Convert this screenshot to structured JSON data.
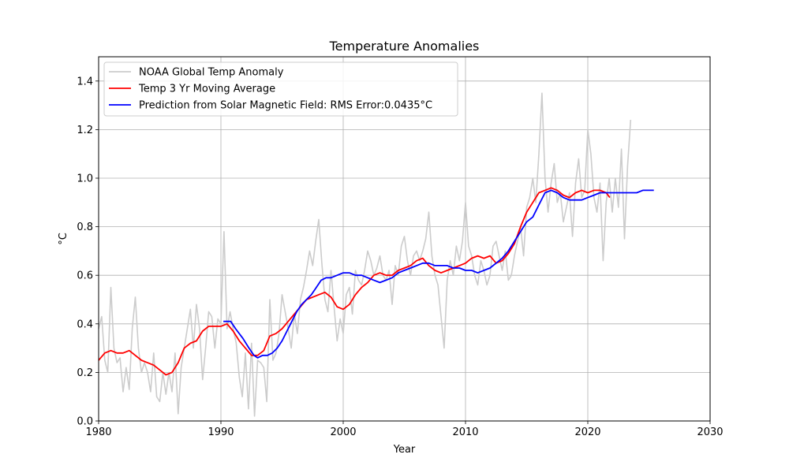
{
  "chart_data": {
    "type": "line",
    "title": "Temperature Anomalies",
    "xlabel": "Year",
    "ylabel": "°C",
    "xlim": [
      1980,
      2030
    ],
    "ylim": [
      0.0,
      1.5
    ],
    "xticks": [
      1980,
      1990,
      2000,
      2010,
      2020,
      2030
    ],
    "yticks": [
      0.0,
      0.2,
      0.4,
      0.6,
      0.8,
      1.0,
      1.2,
      1.4
    ],
    "ytick_labels": [
      "0.0",
      "0.2",
      "0.4",
      "0.6",
      "0.8",
      "1.0",
      "1.2",
      "1.4"
    ],
    "grid": true,
    "legend_position": "top-left",
    "series": [
      {
        "name": "NOAA Global Temp Anomaly",
        "color": "#cccccc",
        "x": [
          1980.0,
          1980.25,
          1980.5,
          1980.75,
          1981.0,
          1981.25,
          1981.5,
          1981.75,
          1982.0,
          1982.25,
          1982.5,
          1982.75,
          1983.0,
          1983.25,
          1983.5,
          1983.75,
          1984.0,
          1984.25,
          1984.5,
          1984.75,
          1985.0,
          1985.25,
          1985.5,
          1985.75,
          1986.0,
          1986.25,
          1986.5,
          1986.75,
          1987.0,
          1987.25,
          1987.5,
          1987.75,
          1988.0,
          1988.25,
          1988.5,
          1988.75,
          1989.0,
          1989.25,
          1989.5,
          1989.75,
          1990.0,
          1990.25,
          1990.5,
          1990.75,
          1991.0,
          1991.25,
          1991.5,
          1991.75,
          1992.0,
          1992.25,
          1992.5,
          1992.75,
          1993.0,
          1993.25,
          1993.5,
          1993.75,
          1994.0,
          1994.25,
          1994.5,
          1994.75,
          1995.0,
          1995.25,
          1995.5,
          1995.75,
          1996.0,
          1996.25,
          1996.5,
          1996.75,
          1997.0,
          1997.25,
          1997.5,
          1997.75,
          1998.0,
          1998.25,
          1998.5,
          1998.75,
          1999.0,
          1999.25,
          1999.5,
          1999.75,
          2000.0,
          2000.25,
          2000.5,
          2000.75,
          2001.0,
          2001.25,
          2001.5,
          2001.75,
          2002.0,
          2002.25,
          2002.5,
          2002.75,
          2003.0,
          2003.25,
          2003.5,
          2003.75,
          2004.0,
          2004.25,
          2004.5,
          2004.75,
          2005.0,
          2005.25,
          2005.5,
          2005.75,
          2006.0,
          2006.25,
          2006.5,
          2006.75,
          2007.0,
          2007.25,
          2007.5,
          2007.75,
          2008.0,
          2008.25,
          2008.5,
          2008.75,
          2009.0,
          2009.25,
          2009.5,
          2009.75,
          2010.0,
          2010.25,
          2010.5,
          2010.75,
          2011.0,
          2011.25,
          2011.5,
          2011.75,
          2012.0,
          2012.25,
          2012.5,
          2012.75,
          2013.0,
          2013.25,
          2013.5,
          2013.75,
          2014.0,
          2014.25,
          2014.5,
          2014.75,
          2015.0,
          2015.25,
          2015.5,
          2015.75,
          2016.0,
          2016.25,
          2016.5,
          2016.75,
          2017.0,
          2017.25,
          2017.5,
          2017.75,
          2018.0,
          2018.25,
          2018.5,
          2018.75,
          2019.0,
          2019.25,
          2019.5,
          2019.75,
          2020.0,
          2020.25,
          2020.5,
          2020.75,
          2021.0,
          2021.25,
          2021.5,
          2021.75,
          2022.0,
          2022.25,
          2022.5,
          2022.75,
          2023.0,
          2023.25,
          2023.5
        ],
        "y": [
          0.38,
          0.43,
          0.25,
          0.2,
          0.55,
          0.3,
          0.24,
          0.26,
          0.12,
          0.22,
          0.13,
          0.38,
          0.51,
          0.3,
          0.2,
          0.24,
          0.2,
          0.12,
          0.28,
          0.1,
          0.08,
          0.2,
          0.11,
          0.2,
          0.12,
          0.28,
          0.03,
          0.22,
          0.3,
          0.38,
          0.46,
          0.3,
          0.48,
          0.38,
          0.17,
          0.3,
          0.45,
          0.43,
          0.3,
          0.42,
          0.4,
          0.78,
          0.38,
          0.45,
          0.38,
          0.32,
          0.18,
          0.1,
          0.28,
          0.05,
          0.32,
          0.02,
          0.25,
          0.24,
          0.22,
          0.08,
          0.5,
          0.25,
          0.28,
          0.36,
          0.52,
          0.45,
          0.38,
          0.3,
          0.44,
          0.36,
          0.5,
          0.55,
          0.62,
          0.7,
          0.64,
          0.74,
          0.83,
          0.65,
          0.5,
          0.45,
          0.62,
          0.47,
          0.33,
          0.42,
          0.36,
          0.52,
          0.55,
          0.44,
          0.62,
          0.58,
          0.56,
          0.62,
          0.7,
          0.66,
          0.6,
          0.63,
          0.68,
          0.6,
          0.58,
          0.62,
          0.48,
          0.64,
          0.6,
          0.72,
          0.76,
          0.66,
          0.6,
          0.68,
          0.7,
          0.66,
          0.7,
          0.75,
          0.86,
          0.68,
          0.6,
          0.56,
          0.43,
          0.3,
          0.58,
          0.66,
          0.6,
          0.72,
          0.66,
          0.74,
          0.9,
          0.72,
          0.68,
          0.6,
          0.56,
          0.66,
          0.62,
          0.56,
          0.6,
          0.72,
          0.74,
          0.68,
          0.62,
          0.7,
          0.58,
          0.6,
          0.68,
          0.74,
          0.8,
          0.68,
          0.88,
          0.92,
          1.0,
          0.9,
          1.1,
          1.35,
          1.0,
          0.86,
          0.98,
          1.06,
          0.9,
          0.94,
          0.82,
          0.88,
          0.94,
          0.76,
          0.98,
          1.08,
          0.92,
          0.95,
          1.2,
          1.1,
          0.92,
          0.86,
          0.98,
          0.66,
          0.9,
          1.0,
          0.86,
          1.0,
          0.88,
          1.12,
          0.75,
          1.05,
          1.24
        ]
      },
      {
        "name": "Temp 3 Yr Moving Average",
        "color": "#ff0000",
        "x": [
          1980.0,
          1980.5,
          1981.0,
          1981.5,
          1982.0,
          1982.5,
          1983.0,
          1983.5,
          1984.0,
          1984.5,
          1985.0,
          1985.5,
          1986.0,
          1986.5,
          1987.0,
          1987.5,
          1988.0,
          1988.5,
          1989.0,
          1989.5,
          1990.0,
          1990.5,
          1991.0,
          1991.5,
          1992.0,
          1992.5,
          1993.0,
          1993.5,
          1994.0,
          1994.5,
          1995.0,
          1995.5,
          1996.0,
          1996.5,
          1997.0,
          1997.5,
          1998.0,
          1998.5,
          1999.0,
          1999.5,
          2000.0,
          2000.5,
          2001.0,
          2001.5,
          2002.0,
          2002.5,
          2003.0,
          2003.5,
          2004.0,
          2004.5,
          2005.0,
          2005.5,
          2006.0,
          2006.5,
          2007.0,
          2007.5,
          2008.0,
          2008.5,
          2009.0,
          2009.5,
          2010.0,
          2010.5,
          2011.0,
          2011.5,
          2012.0,
          2012.5,
          2013.0,
          2013.5,
          2014.0,
          2014.5,
          2015.0,
          2015.5,
          2016.0,
          2016.5,
          2017.0,
          2017.5,
          2018.0,
          2018.5,
          2019.0,
          2019.5,
          2020.0,
          2020.5,
          2021.0,
          2021.5,
          2021.8
        ],
        "y": [
          0.25,
          0.28,
          0.29,
          0.28,
          0.28,
          0.29,
          0.27,
          0.25,
          0.24,
          0.23,
          0.21,
          0.19,
          0.2,
          0.24,
          0.3,
          0.32,
          0.33,
          0.37,
          0.39,
          0.39,
          0.39,
          0.4,
          0.37,
          0.33,
          0.3,
          0.27,
          0.27,
          0.29,
          0.35,
          0.36,
          0.38,
          0.41,
          0.44,
          0.47,
          0.5,
          0.51,
          0.52,
          0.53,
          0.51,
          0.47,
          0.46,
          0.48,
          0.52,
          0.55,
          0.57,
          0.6,
          0.61,
          0.6,
          0.6,
          0.62,
          0.63,
          0.64,
          0.66,
          0.67,
          0.64,
          0.62,
          0.61,
          0.62,
          0.63,
          0.64,
          0.65,
          0.67,
          0.68,
          0.67,
          0.68,
          0.65,
          0.66,
          0.69,
          0.73,
          0.8,
          0.86,
          0.9,
          0.94,
          0.95,
          0.96,
          0.95,
          0.93,
          0.92,
          0.94,
          0.95,
          0.94,
          0.95,
          0.95,
          0.94,
          0.92
        ]
      },
      {
        "name": "Prediction from Solar Magnetic Field: RMS Error:0.0435°C",
        "color": "#0000ff",
        "x": [
          1990.2,
          1990.8,
          1991.2,
          1991.8,
          1992.3,
          1992.7,
          1993.0,
          1993.4,
          1993.8,
          1994.2,
          1994.6,
          1995.0,
          1995.4,
          1995.8,
          1996.2,
          1996.6,
          1997.0,
          1997.4,
          1997.8,
          1998.2,
          1998.6,
          1999.0,
          1999.5,
          2000.0,
          2000.5,
          2001.0,
          2001.5,
          2002.0,
          2002.5,
          2003.0,
          2003.5,
          2004.0,
          2004.5,
          2005.0,
          2005.5,
          2006.0,
          2006.5,
          2007.0,
          2007.5,
          2008.0,
          2008.5,
          2009.0,
          2009.5,
          2010.0,
          2010.5,
          2011.0,
          2011.5,
          2012.0,
          2012.5,
          2013.0,
          2013.5,
          2014.0,
          2014.5,
          2015.0,
          2015.5,
          2016.0,
          2016.5,
          2017.0,
          2017.5,
          2018.0,
          2018.5,
          2019.0,
          2019.5,
          2020.0,
          2020.5,
          2021.0,
          2021.5,
          2022.0,
          2022.5,
          2023.0,
          2023.5,
          2024.0,
          2024.5,
          2025.0,
          2025.4
        ],
        "y": [
          0.41,
          0.41,
          0.38,
          0.34,
          0.3,
          0.27,
          0.26,
          0.27,
          0.27,
          0.28,
          0.3,
          0.33,
          0.37,
          0.41,
          0.45,
          0.48,
          0.5,
          0.52,
          0.55,
          0.58,
          0.59,
          0.59,
          0.6,
          0.61,
          0.61,
          0.6,
          0.6,
          0.59,
          0.58,
          0.57,
          0.58,
          0.59,
          0.61,
          0.62,
          0.63,
          0.64,
          0.65,
          0.65,
          0.64,
          0.64,
          0.64,
          0.63,
          0.63,
          0.62,
          0.62,
          0.61,
          0.62,
          0.63,
          0.65,
          0.67,
          0.7,
          0.74,
          0.78,
          0.82,
          0.84,
          0.89,
          0.94,
          0.95,
          0.94,
          0.92,
          0.91,
          0.91,
          0.91,
          0.92,
          0.93,
          0.94,
          0.94,
          0.94,
          0.94,
          0.94,
          0.94,
          0.94,
          0.95,
          0.95,
          0.95
        ]
      }
    ]
  }
}
